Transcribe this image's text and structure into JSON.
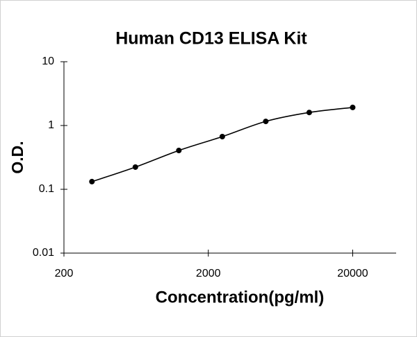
{
  "chart_data": {
    "type": "line",
    "title": "Human CD13 ELISA Kit",
    "x_label": "Concentration(pg/ml)",
    "y_label": "O.D.",
    "x": [
      312.5,
      625,
      1250,
      2500,
      5000,
      10000,
      20000
    ],
    "values": [
      0.132,
      0.223,
      0.406,
      0.67,
      1.16,
      1.6,
      1.92
    ],
    "color": "#000000",
    "markers": true,
    "smooth": true,
    "xscale": "log",
    "yscale": "log",
    "xlim": [
      200,
      40000
    ],
    "ylim": [
      0.01,
      10
    ],
    "xticks": [
      200,
      2000,
      20000
    ],
    "yticks": [
      0.01,
      0.1,
      1,
      10
    ]
  }
}
